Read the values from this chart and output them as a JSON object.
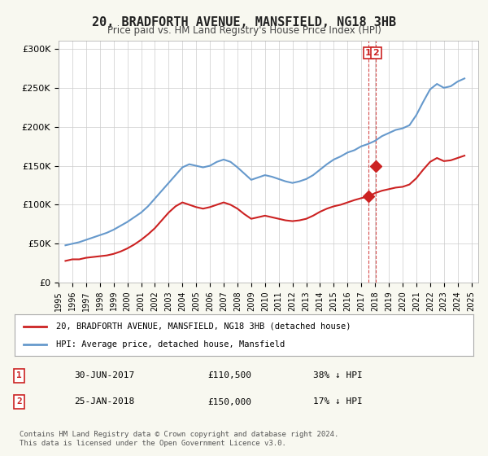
{
  "title": "20, BRADFORTH AVENUE, MANSFIELD, NG18 3HB",
  "subtitle": "Price paid vs. HM Land Registry's House Price Index (HPI)",
  "hpi_years": [
    1995.5,
    1996.0,
    1996.5,
    1997.0,
    1997.5,
    1998.0,
    1998.5,
    1999.0,
    1999.5,
    2000.0,
    2000.5,
    2001.0,
    2001.5,
    2002.0,
    2002.5,
    2003.0,
    2003.5,
    2004.0,
    2004.5,
    2005.0,
    2005.5,
    2006.0,
    2006.5,
    2007.0,
    2007.5,
    2008.0,
    2008.5,
    2009.0,
    2009.5,
    2010.0,
    2010.5,
    2011.0,
    2011.5,
    2012.0,
    2012.5,
    2013.0,
    2013.5,
    2014.0,
    2014.5,
    2015.0,
    2015.5,
    2016.0,
    2016.5,
    2017.0,
    2017.5,
    2018.0,
    2018.5,
    2019.0,
    2019.5,
    2020.0,
    2020.5,
    2021.0,
    2021.5,
    2022.0,
    2022.5,
    2023.0,
    2023.5,
    2024.0,
    2024.5
  ],
  "hpi_values": [
    48000,
    50000,
    52000,
    55000,
    58000,
    61000,
    64000,
    68000,
    73000,
    78000,
    84000,
    90000,
    98000,
    108000,
    118000,
    128000,
    138000,
    148000,
    152000,
    150000,
    148000,
    150000,
    155000,
    158000,
    155000,
    148000,
    140000,
    132000,
    135000,
    138000,
    136000,
    133000,
    130000,
    128000,
    130000,
    133000,
    138000,
    145000,
    152000,
    158000,
    162000,
    167000,
    170000,
    175000,
    178000,
    182000,
    188000,
    192000,
    196000,
    198000,
    202000,
    215000,
    232000,
    248000,
    255000,
    250000,
    252000,
    258000,
    262000
  ],
  "price_years": [
    1995.5,
    1996.0,
    1996.5,
    1997.0,
    1997.5,
    1998.0,
    1998.5,
    1999.0,
    1999.5,
    2000.0,
    2000.5,
    2001.0,
    2001.5,
    2002.0,
    2002.5,
    2003.0,
    2003.5,
    2004.0,
    2004.5,
    2005.0,
    2005.5,
    2006.0,
    2006.5,
    2007.0,
    2007.5,
    2008.0,
    2008.5,
    2009.0,
    2009.5,
    2010.0,
    2010.5,
    2011.0,
    2011.5,
    2012.0,
    2012.5,
    2013.0,
    2013.5,
    2014.0,
    2014.5,
    2015.0,
    2015.5,
    2016.0,
    2016.5,
    2017.0,
    2017.5,
    2018.0,
    2018.5,
    2019.0,
    2019.5,
    2020.0,
    2020.5,
    2021.0,
    2021.5,
    2022.0,
    2022.5,
    2023.0,
    2023.5,
    2024.0,
    2024.5
  ],
  "price_values": [
    28000,
    30000,
    30000,
    32000,
    33000,
    34000,
    35000,
    37000,
    40000,
    44000,
    49000,
    55000,
    62000,
    70000,
    80000,
    90000,
    98000,
    103000,
    100000,
    97000,
    95000,
    97000,
    100000,
    103000,
    100000,
    95000,
    88000,
    82000,
    84000,
    86000,
    84000,
    82000,
    80000,
    79000,
    80000,
    82000,
    86000,
    91000,
    95000,
    98000,
    100000,
    103000,
    106000,
    108500,
    110500,
    115000,
    118000,
    120000,
    122000,
    123000,
    126000,
    134000,
    145000,
    155000,
    160000,
    156000,
    157000,
    160000,
    163000
  ],
  "transaction1_x": 2017.5,
  "transaction1_y": 110500,
  "transaction1_label": "1",
  "transaction2_x": 2018.08,
  "transaction2_y": 150000,
  "transaction2_label": "2",
  "yticks": [
    0,
    50000,
    100000,
    150000,
    200000,
    250000,
    300000
  ],
  "ytick_labels": [
    "£0",
    "£50K",
    "£100K",
    "£150K",
    "£200K",
    "£250K",
    "£300K"
  ],
  "xticks": [
    1995,
    1996,
    1997,
    1998,
    1999,
    2000,
    2001,
    2002,
    2003,
    2004,
    2005,
    2006,
    2007,
    2008,
    2009,
    2010,
    2011,
    2012,
    2013,
    2014,
    2015,
    2016,
    2017,
    2018,
    2019,
    2020,
    2021,
    2022,
    2023,
    2024,
    2025
  ],
  "xlim": [
    1995,
    2025.5
  ],
  "ylim": [
    0,
    310000
  ],
  "hpi_color": "#6699cc",
  "price_color": "#cc2222",
  "dashed_line_color": "#cc2222",
  "legend1_text": "20, BRADFORTH AVENUE, MANSFIELD, NG18 3HB (detached house)",
  "legend2_text": "HPI: Average price, detached house, Mansfield",
  "table_row1": [
    "1",
    "30-JUN-2017",
    "£110,500",
    "38% ↓ HPI"
  ],
  "table_row2": [
    "2",
    "25-JAN-2018",
    "£150,000",
    "17% ↓ HPI"
  ],
  "footer": "Contains HM Land Registry data © Crown copyright and database right 2024.\nThis data is licensed under the Open Government Licence v3.0.",
  "bg_color": "#f8f8f0",
  "plot_bg_color": "#ffffff"
}
